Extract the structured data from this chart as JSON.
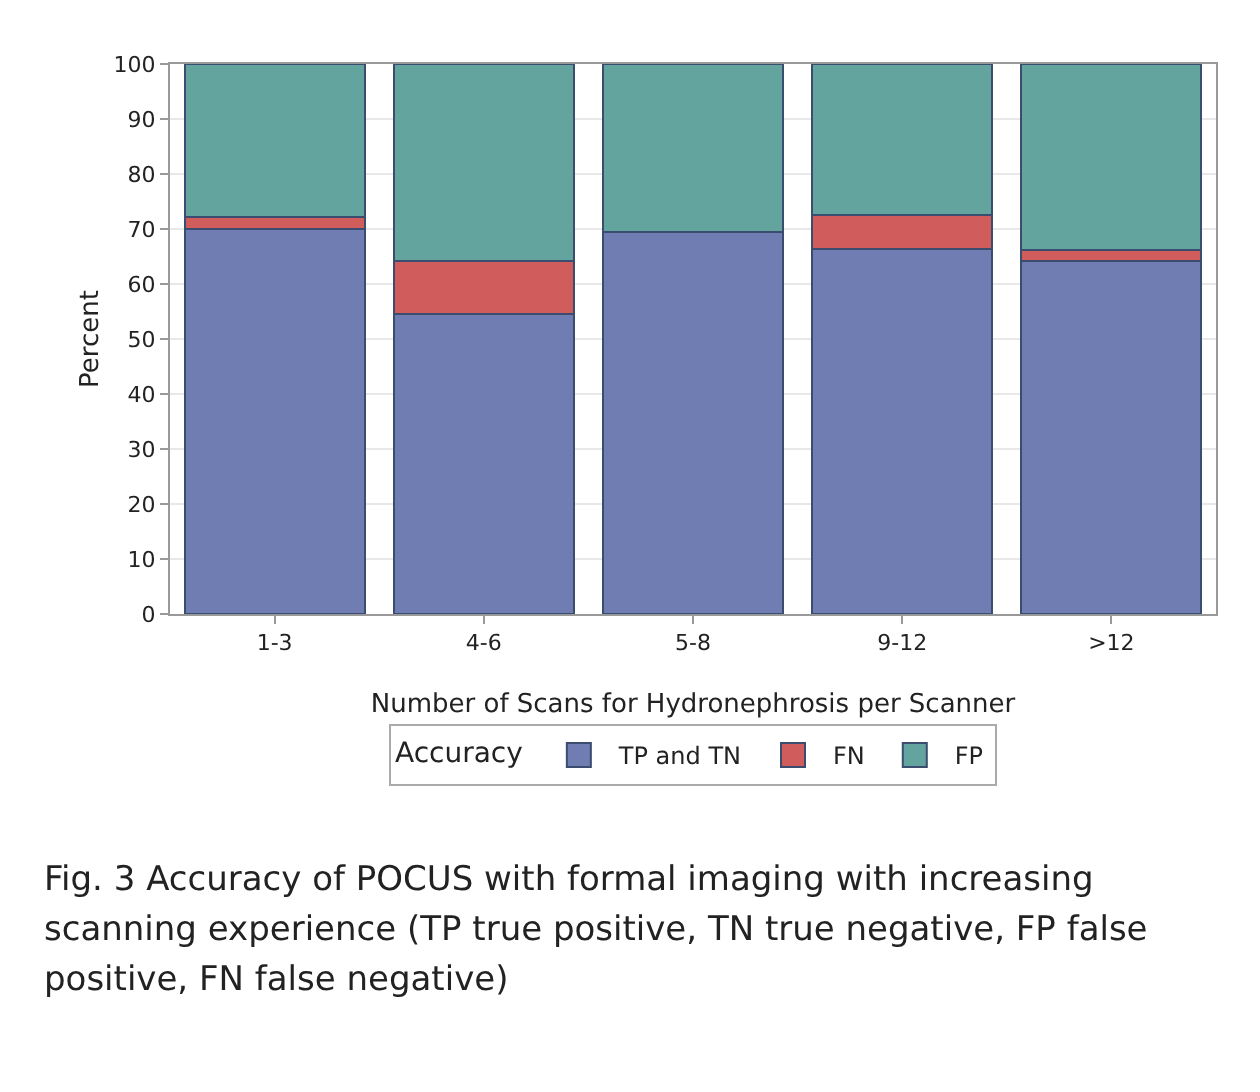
{
  "chart_data": {
    "type": "bar",
    "stacked": true,
    "categories": [
      "1-3",
      "4-6",
      "5-8",
      "9-12",
      ">12"
    ],
    "series": [
      {
        "name": "TP and TN",
        "color": "#6f7db2",
        "values": [
          70,
          54.6,
          69.4,
          66.3,
          64.1
        ]
      },
      {
        "name": "FN",
        "color": "#d05c5c",
        "values": [
          2.2,
          9.6,
          0,
          6.3,
          2.1
        ]
      },
      {
        "name": "FP",
        "color": "#63a59e",
        "values": [
          27.8,
          35.8,
          30.6,
          27.4,
          33.8
        ]
      }
    ],
    "xlabel": "Number of Scans for Hydronephrosis per Scanner",
    "ylabel": "Percent",
    "legend_title": "Accuracy",
    "legend": "bottom",
    "ylim": [
      0,
      100
    ],
    "yticks": [
      0,
      10,
      20,
      30,
      40,
      50,
      60,
      70,
      80,
      90,
      100
    ],
    "grid": "y",
    "annotations": [
      "Fig. 3  Accuracy of POCUS with formal imaging with increasing scanning experience (TP true positive, TN true negative, FP false positive, FN false negative)"
    ]
  }
}
